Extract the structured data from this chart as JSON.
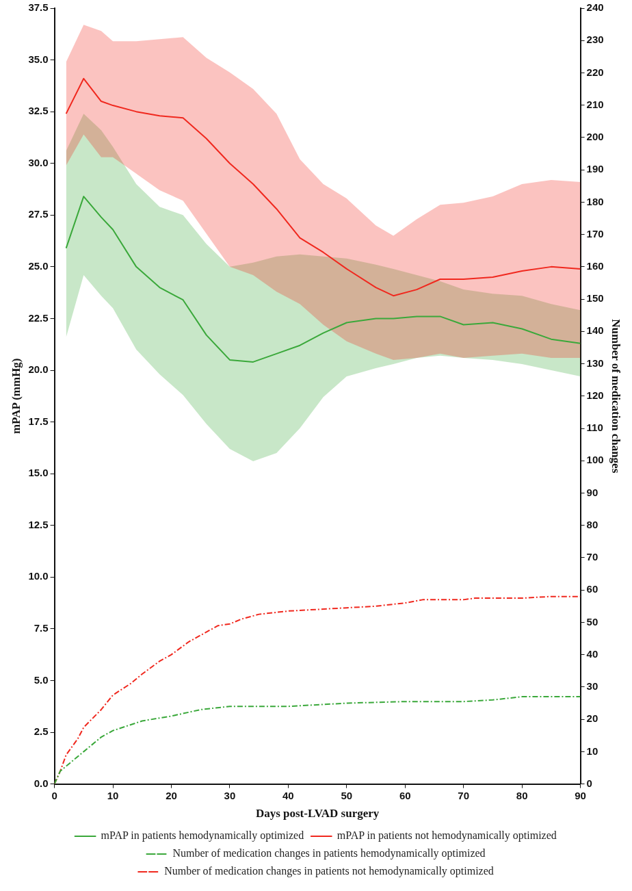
{
  "chart_data": {
    "type": "line",
    "xlabel": "Days post-LVAD surgery",
    "ylabel": "mPAP (mmHg)",
    "y2label": "Number of medication changes",
    "x": [
      2,
      5,
      8,
      10,
      14,
      18,
      22,
      26,
      30,
      34,
      38,
      42,
      46,
      50,
      55,
      58,
      62,
      66,
      70,
      75,
      80,
      85,
      90
    ],
    "xlim": [
      0,
      90
    ],
    "xticks": [
      0,
      10,
      20,
      30,
      40,
      50,
      60,
      70,
      80,
      90
    ],
    "ylim": [
      0,
      37.5
    ],
    "yticks": [
      {
        "value": 0,
        "label": "0.0"
      },
      {
        "value": 2.5,
        "label": "2.5"
      },
      {
        "value": 5,
        "label": "5.0"
      },
      {
        "value": 7.5,
        "label": "7.5"
      },
      {
        "value": 10,
        "label": "10.0"
      },
      {
        "value": 12.5,
        "label": "12.5"
      },
      {
        "value": 15,
        "label": "15.0"
      },
      {
        "value": 17.5,
        "label": "17.5"
      },
      {
        "value": 20,
        "label": "20.0"
      },
      {
        "value": 22.5,
        "label": "22.5"
      },
      {
        "value": 25,
        "label": "25.0"
      },
      {
        "value": 27.5,
        "label": "27.5"
      },
      {
        "value": 30,
        "label": "30.0"
      },
      {
        "value": 32.5,
        "label": "32.5"
      },
      {
        "value": 35,
        "label": "35.0"
      },
      {
        "value": 37.5,
        "label": "37.5"
      }
    ],
    "y2lim": [
      0,
      240
    ],
    "y2ticks": [
      0,
      10,
      20,
      30,
      40,
      50,
      60,
      70,
      80,
      90,
      100,
      110,
      120,
      130,
      140,
      150,
      160,
      170,
      180,
      190,
      200,
      210,
      220,
      230,
      240
    ],
    "grid": false,
    "legend": "bottom",
    "marker": "none",
    "series": [
      {
        "name": "mPAP in patients hemodynamically optimized",
        "color": "#3aa83a",
        "line_style": "solid",
        "values": [
          25.9,
          28.4,
          27.4,
          26.8,
          25.0,
          24.0,
          23.4,
          21.7,
          20.5,
          20.4,
          20.8,
          21.2,
          21.8,
          22.3,
          22.5,
          22.5,
          22.6,
          22.6,
          22.2,
          22.3,
          22.0,
          21.5,
          21.3
        ],
        "lower": [
          21.6,
          24.6,
          23.6,
          23.0,
          21.0,
          19.8,
          18.8,
          17.4,
          16.2,
          15.6,
          16.0,
          17.2,
          18.7,
          19.7,
          20.1,
          20.3,
          20.6,
          20.7,
          20.6,
          20.5,
          20.3,
          20.0,
          19.7
        ],
        "upper": [
          30.6,
          32.4,
          31.6,
          30.8,
          29.0,
          27.9,
          27.5,
          26.1,
          25.0,
          25.2,
          25.5,
          25.6,
          25.5,
          25.4,
          25.1,
          24.9,
          24.6,
          24.3,
          23.9,
          23.7,
          23.6,
          23.2,
          22.9
        ]
      },
      {
        "name": "mPAP in patients not hemodynamically optimized",
        "color": "#f0281e",
        "line_style": "solid",
        "values": [
          32.4,
          34.1,
          33.0,
          32.8,
          32.5,
          32.3,
          32.2,
          31.2,
          30.0,
          29.0,
          27.8,
          26.4,
          25.7,
          24.9,
          24.0,
          23.6,
          23.9,
          24.4,
          24.4,
          24.5,
          24.8,
          25.0,
          24.9
        ],
        "lower": [
          29.9,
          31.4,
          30.3,
          30.3,
          29.5,
          28.7,
          28.2,
          26.6,
          25.0,
          24.6,
          23.8,
          23.2,
          22.2,
          21.4,
          20.8,
          20.5,
          20.6,
          20.8,
          20.6,
          20.7,
          20.8,
          20.6,
          20.6
        ],
        "upper": [
          34.9,
          36.7,
          36.4,
          35.9,
          35.9,
          36.0,
          36.1,
          35.1,
          34.4,
          33.6,
          32.4,
          30.2,
          29.0,
          28.3,
          27.0,
          26.5,
          27.3,
          28.0,
          28.1,
          28.4,
          29.0,
          29.2,
          29.1
        ]
      },
      {
        "name": "Number of medication changes in patients hemodynamically optimized",
        "color": "#3aa83a",
        "line_style": "dashed",
        "axis": "y2",
        "x": [
          0,
          1,
          3,
          5,
          8,
          10,
          15,
          20,
          25,
          30,
          40,
          50,
          60,
          70,
          75,
          80,
          90
        ],
        "values": [
          0,
          4,
          7,
          10,
          14.5,
          16.5,
          19.5,
          21,
          23,
          24,
          24,
          25,
          25.5,
          25.5,
          26,
          27,
          27
        ]
      },
      {
        "name": "Number of medication changes in patients not hemodynamically optimized",
        "color": "#f0281e",
        "line_style": "dashed",
        "axis": "y2",
        "x": [
          0,
          1,
          2,
          4,
          5,
          8,
          10,
          13,
          15,
          18,
          20,
          23,
          25,
          28,
          30,
          32,
          35,
          40,
          45,
          50,
          55,
          60,
          63,
          70,
          72,
          80,
          85,
          90
        ],
        "values": [
          0,
          4,
          9,
          14,
          17.5,
          23,
          27.5,
          31,
          34,
          38,
          40,
          44,
          46,
          49,
          49.5,
          51,
          52.5,
          53.5,
          54,
          54.5,
          55,
          56,
          57,
          57,
          57.5,
          57.5,
          58,
          58
        ]
      }
    ]
  }
}
